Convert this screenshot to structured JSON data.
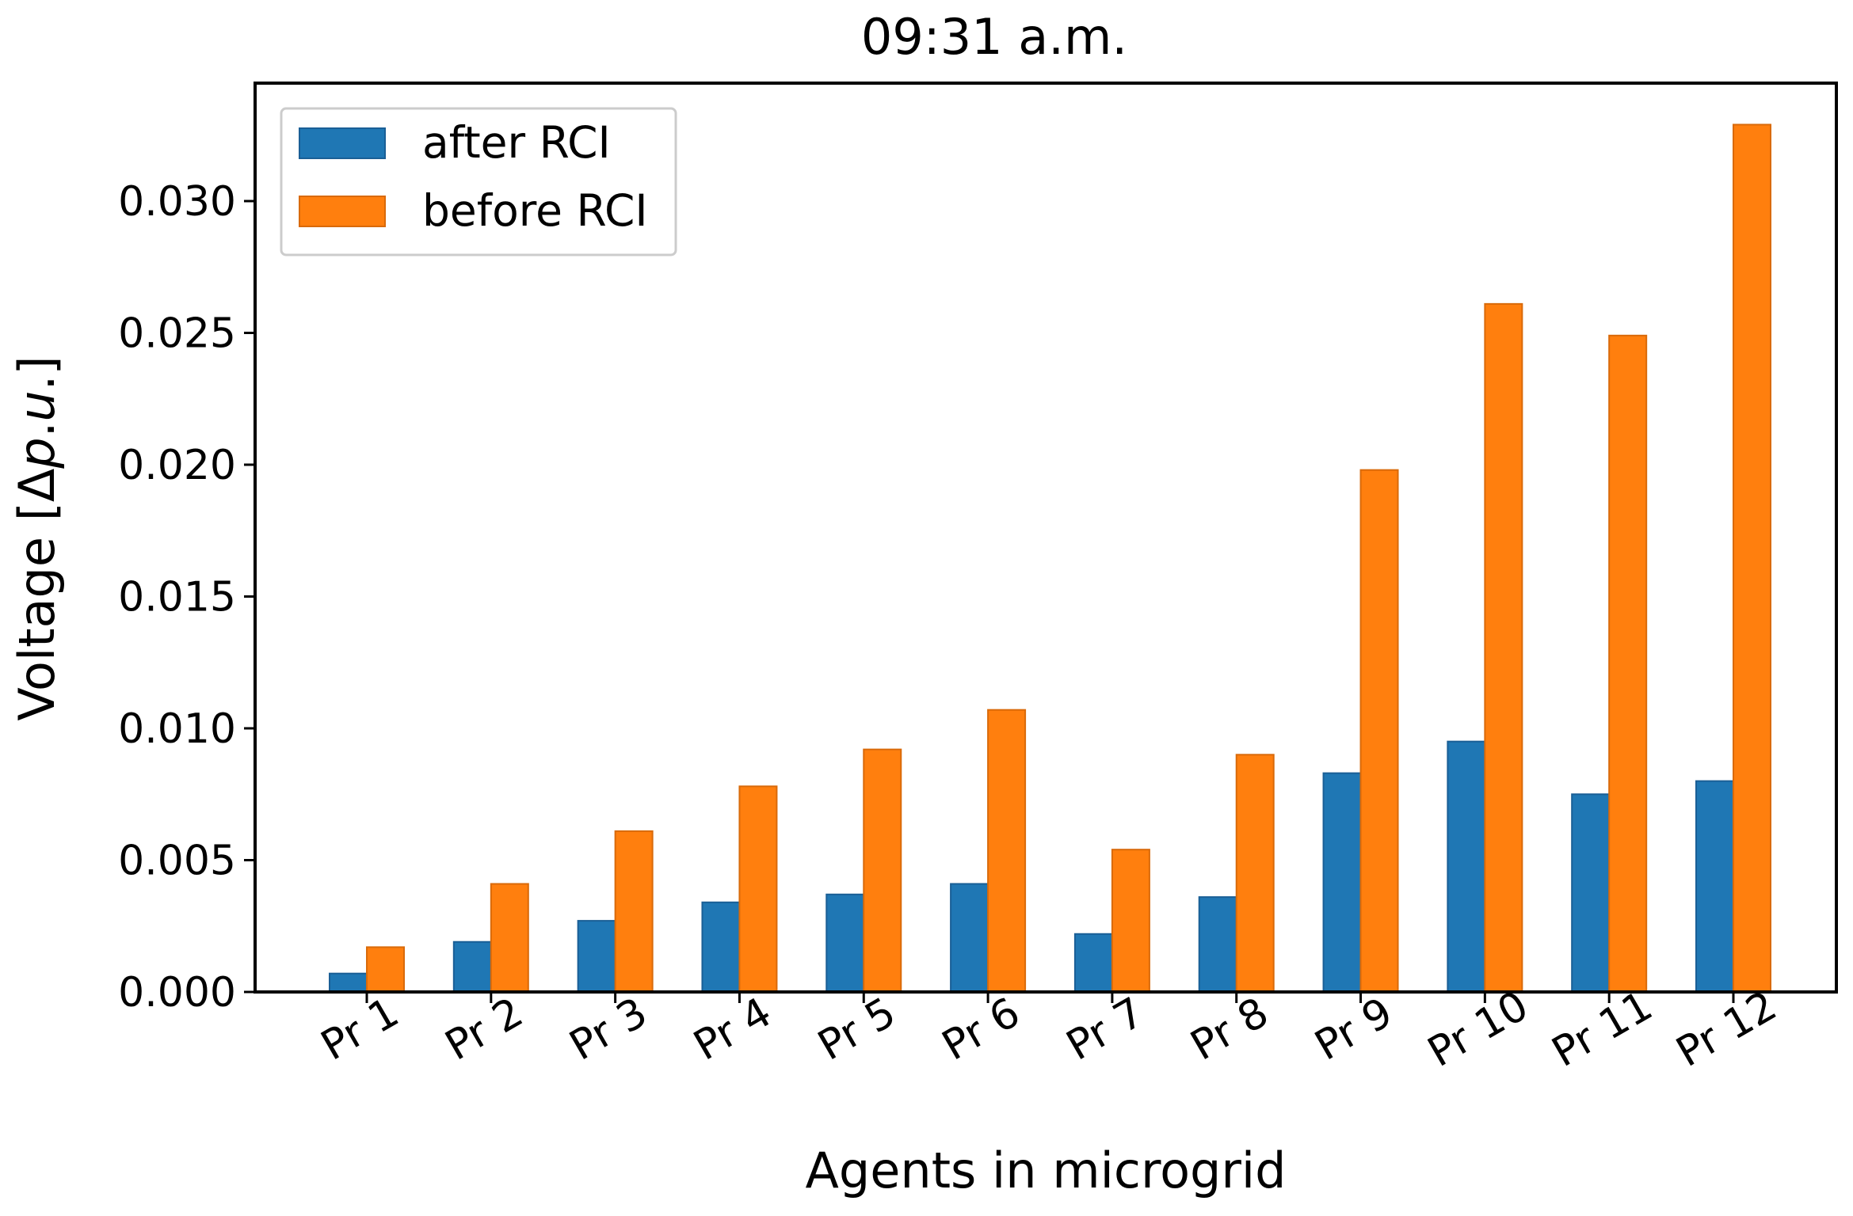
{
  "chart_data": {
    "type": "bar",
    "title": "09:31 a.m.",
    "xlabel": "Agents in microgrid",
    "ylabel": "Voltage [Δp.u.]",
    "ylim": [
      0,
      0.0345
    ],
    "yticks": [
      0.0,
      0.005,
      0.01,
      0.015,
      0.02,
      0.025,
      0.03
    ],
    "ytick_labels": [
      "0.000",
      "0.005",
      "0.010",
      "0.015",
      "0.020",
      "0.025",
      "0.030"
    ],
    "grid": false,
    "legend_position": "top-left",
    "categories": [
      "Pr 1",
      "Pr 2",
      "Pr 3",
      "Pr 4",
      "Pr 5",
      "Pr 6",
      "Pr 7",
      "Pr 8",
      "Pr 9",
      "Pr 10",
      "Pr 11",
      "Pr 12"
    ],
    "series": [
      {
        "name": "after RCI",
        "color": "#1f77b4",
        "values": [
          0.0007,
          0.0019,
          0.0027,
          0.0034,
          0.0037,
          0.0041,
          0.0022,
          0.0036,
          0.0083,
          0.0095,
          0.0075,
          0.008
        ]
      },
      {
        "name": "before RCI",
        "color": "#ff7f0e",
        "values": [
          0.0017,
          0.0041,
          0.0061,
          0.0078,
          0.0092,
          0.0107,
          0.0054,
          0.009,
          0.0198,
          0.0261,
          0.0249,
          0.0329
        ]
      }
    ]
  }
}
